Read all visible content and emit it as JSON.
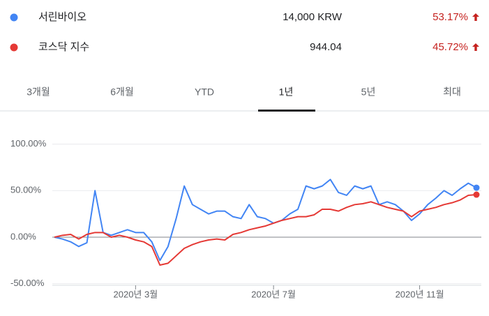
{
  "legend": [
    {
      "name": "서린바이오",
      "price": "14,000 KRW",
      "change": "53.17%"
    },
    {
      "name": "코스닥 지수",
      "price": "944.04",
      "change": "45.72%"
    }
  ],
  "tabs": [
    "3개월",
    "6개월",
    "YTD",
    "1년",
    "5년",
    "최대"
  ],
  "selected_tab": 3,
  "chart_data": {
    "type": "line",
    "categories": [
      null,
      null,
      null,
      null,
      null,
      null,
      null,
      null,
      null,
      null,
      "2020년 3월",
      null,
      null,
      null,
      null,
      null,
      null,
      null,
      null,
      null,
      null,
      null,
      null,
      null,
      null,
      null,
      null,
      "2020년 7월",
      null,
      null,
      null,
      null,
      null,
      null,
      null,
      null,
      null,
      null,
      null,
      null,
      null,
      null,
      null,
      null,
      null,
      "2020년 11월",
      null,
      null,
      null,
      null,
      null,
      null,
      null
    ],
    "series": [
      {
        "name": "서린바이오",
        "color": "#4285f4",
        "values": [
          0,
          -2,
          -5,
          -10,
          -6,
          50,
          5,
          2,
          5,
          8,
          5,
          5,
          -5,
          -25,
          -10,
          20,
          55,
          35,
          30,
          25,
          28,
          28,
          22,
          20,
          35,
          22,
          20,
          15,
          18,
          25,
          30,
          55,
          52,
          55,
          62,
          48,
          45,
          55,
          52,
          55,
          35,
          38,
          35,
          28,
          18,
          25,
          35,
          42,
          50,
          45,
          52,
          58,
          53.17
        ]
      },
      {
        "name": "코스닥 지수",
        "color": "#e53935",
        "values": [
          0,
          2,
          3,
          -2,
          3,
          5,
          5,
          0,
          2,
          0,
          -3,
          -5,
          -10,
          -30,
          -28,
          -20,
          -12,
          -8,
          -5,
          -3,
          -2,
          -3,
          3,
          5,
          8,
          10,
          12,
          15,
          18,
          20,
          22,
          22,
          24,
          30,
          30,
          28,
          32,
          35,
          36,
          38,
          35,
          32,
          30,
          28,
          22,
          28,
          30,
          32,
          35,
          37,
          40,
          45,
          45.72
        ]
      }
    ],
    "ylim": [
      -55,
      115
    ],
    "yticks": [
      {
        "value": -50,
        "label": "-50.00%"
      },
      {
        "value": 0,
        "label": "0.00%"
      },
      {
        "value": 50,
        "label": "50.00%"
      },
      {
        "value": 100,
        "label": "100.00%"
      }
    ],
    "grid": true
  }
}
